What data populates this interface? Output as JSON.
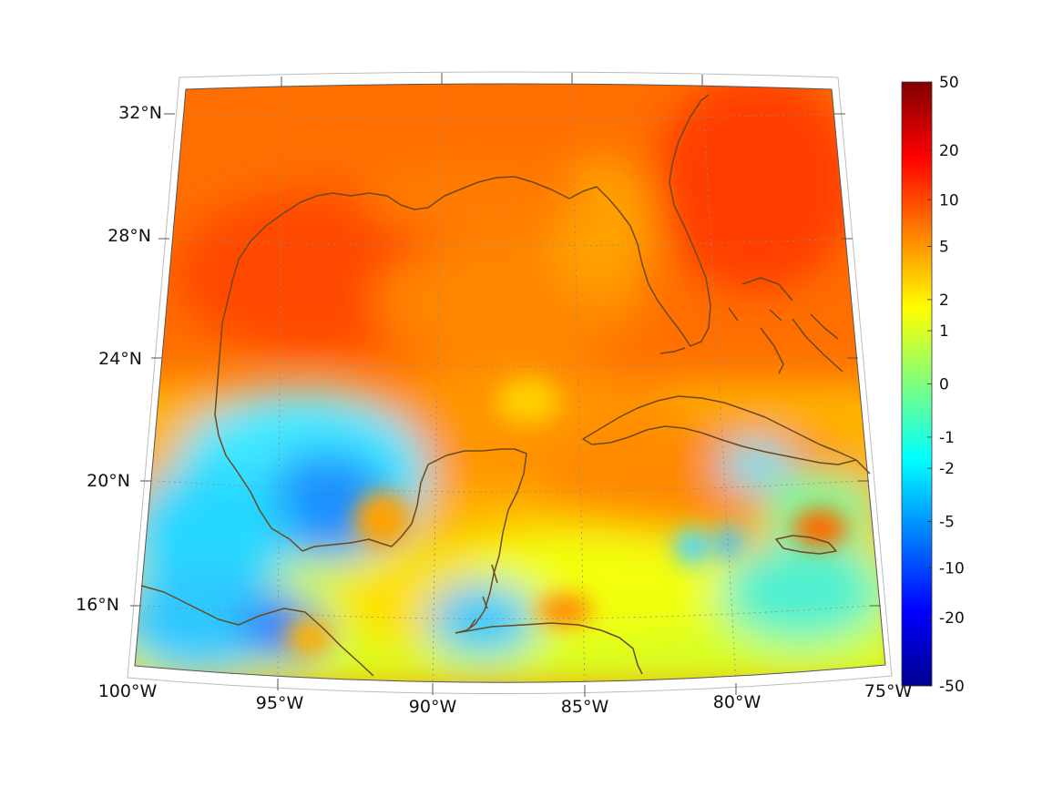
{
  "map": {
    "projection": "lambert-conformal",
    "extent": {
      "lon": [
        -100,
        -75
      ],
      "lat": [
        14,
        33
      ]
    },
    "graticule_spacing": {
      "lon": 5,
      "lat": 4
    },
    "lon_labels": [
      "100°W",
      "95°W",
      "90°W",
      "85°W",
      "80°W",
      "75°W"
    ],
    "lat_labels": [
      "16°N",
      "20°N",
      "24°N",
      "28°N",
      "32°N"
    ],
    "coastline_color": "#6b4a1f",
    "grid_color": "#8c8c8c"
  },
  "colorbar": {
    "colormap": "jet",
    "scale": "symmetric-log",
    "tick_labels": [
      "50",
      "20",
      "10",
      "5",
      "2",
      "1",
      "0",
      "-1",
      "-2",
      "-5",
      "-10",
      "-20",
      "-50"
    ],
    "range": [
      -50,
      50
    ]
  }
}
